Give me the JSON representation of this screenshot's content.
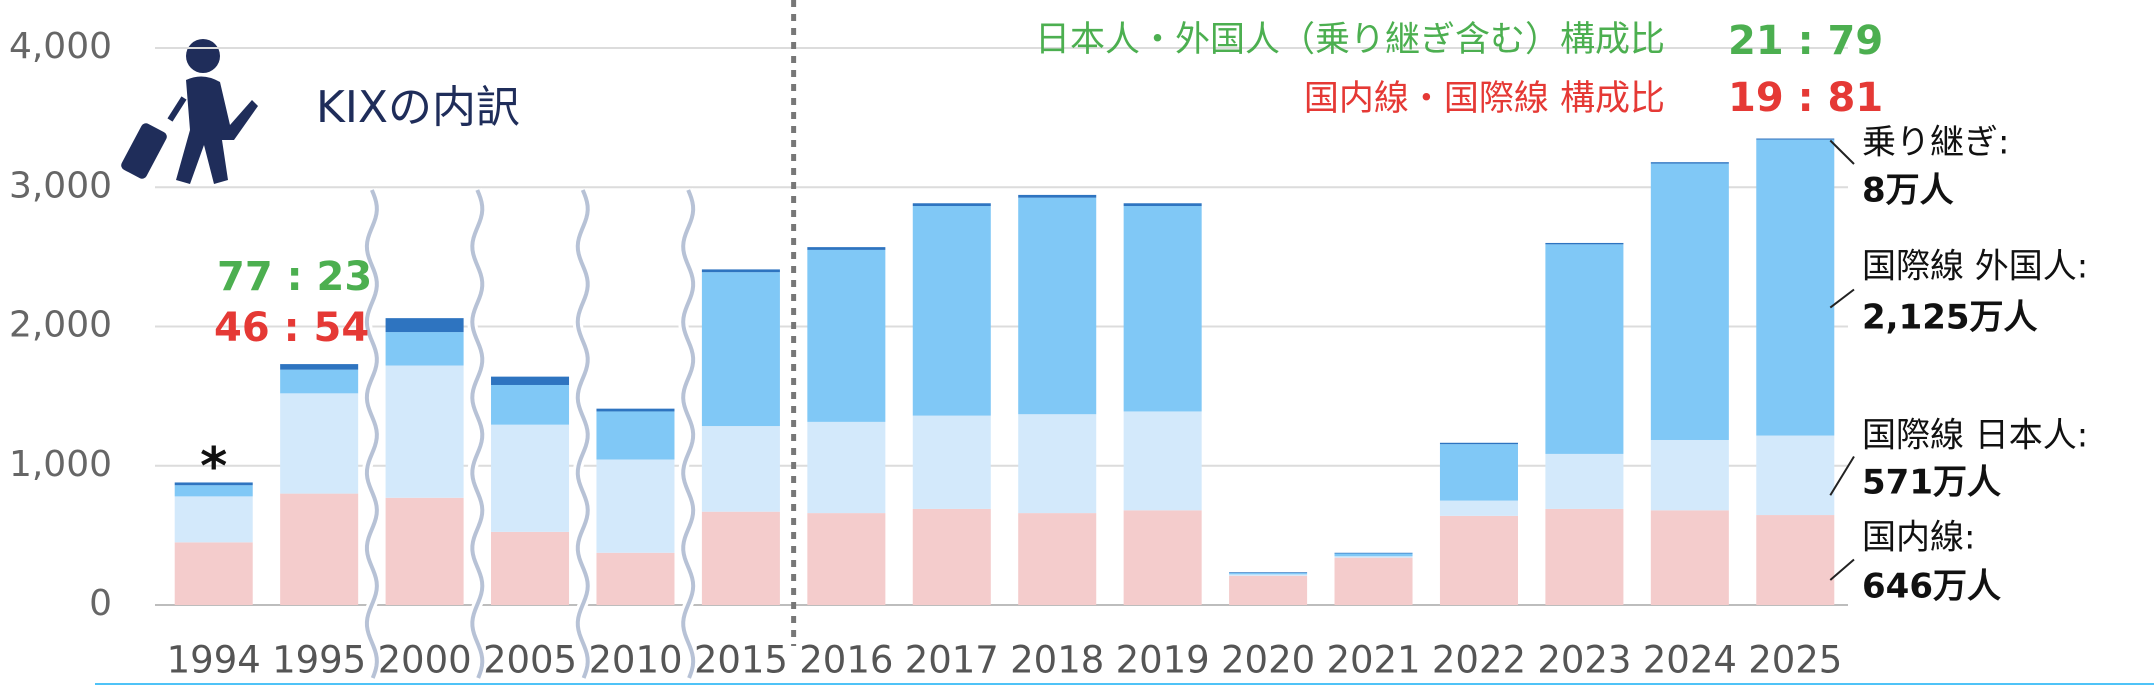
{
  "chart_data": {
    "type": "bar",
    "stacked": true,
    "categories": [
      "1994",
      "1995",
      "2000",
      "2005",
      "2010",
      "2015",
      "2016",
      "2017",
      "2018",
      "2019",
      "2020",
      "2021",
      "2022",
      "2023",
      "2024",
      "2025"
    ],
    "series": [
      {
        "name": "国内線:",
        "color": "#f4cccc",
        "values": [
          450,
          800,
          770,
          525,
          375,
          670,
          660,
          690,
          660,
          680,
          210,
          340,
          640,
          690,
          680,
          646
        ],
        "value_labels": [
          null,
          null,
          null,
          null,
          null,
          null,
          null,
          null,
          null,
          null,
          null,
          null,
          null,
          null,
          null,
          "646万人"
        ]
      },
      {
        "name": "国際線  日本人:",
        "color": "#d3e9fb",
        "values": [
          330,
          720,
          950,
          770,
          670,
          615,
          655,
          670,
          710,
          710,
          10,
          10,
          110,
          395,
          505,
          571
        ],
        "value_labels": [
          null,
          null,
          null,
          null,
          null,
          null,
          null,
          null,
          null,
          null,
          null,
          null,
          null,
          null,
          null,
          "571万人"
        ]
      },
      {
        "name": "国際線  外国人:",
        "color": "#80c8f6",
        "values": [
          80,
          170,
          240,
          285,
          345,
          1105,
          1235,
          1505,
          1555,
          1475,
          10,
          20,
          405,
          1505,
          1985,
          2125
        ],
        "value_labels": [
          null,
          null,
          null,
          null,
          null,
          null,
          null,
          null,
          null,
          null,
          null,
          null,
          null,
          null,
          null,
          "2,125万人"
        ]
      },
      {
        "name": "乗り継ぎ:",
        "color": "#2e74c0",
        "values": [
          20,
          40,
          100,
          60,
          20,
          20,
          20,
          20,
          20,
          20,
          5,
          5,
          10,
          10,
          10,
          8
        ],
        "value_labels": [
          null,
          null,
          null,
          null,
          null,
          null,
          null,
          null,
          null,
          null,
          null,
          null,
          null,
          null,
          null,
          "8万人"
        ]
      }
    ],
    "ylim": [
      0,
      4000
    ],
    "yticks": [
      0,
      {
        "value": 1000,
        "label": "1,000"
      },
      {
        "value": 2000,
        "label": "2,000"
      },
      {
        "value": 3000,
        "label": "3,000"
      },
      {
        "value": 4000,
        "label": "4,000"
      }
    ],
    "grid": true,
    "annotations": {
      "title": "KIXの内訳",
      "asterisk": "*",
      "nationality_heading": "日本人・外国人（乗り継ぎ含む）構成比",
      "nationality_ratio_2025": "21 : 79",
      "route_heading": "国内線・国際線  構成比",
      "route_ratio_2025": "19 : 81",
      "nationality_ratio_1995": "77 : 23",
      "route_ratio_1995": "46 : 54"
    }
  }
}
